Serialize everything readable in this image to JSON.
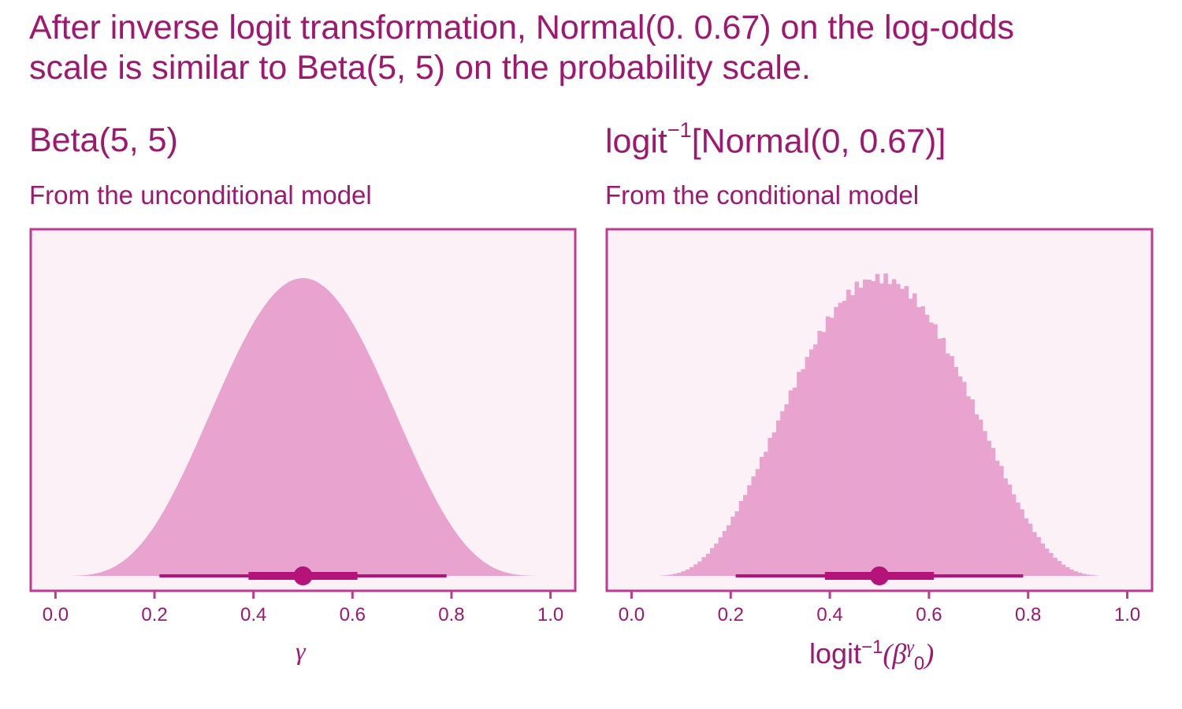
{
  "figure_title": {
    "line1": "After inverse logit transformation, Normal(0. 0.67) on the log-odds",
    "line2": "scale is similar to Beta(5, 5) on the probability scale."
  },
  "colors": {
    "text": "#a0176f",
    "panel_border": "#c03a92",
    "panel_bg": "#fcf1f7",
    "fill": "#e8a3cf",
    "interval": "#b5137a"
  },
  "chart_data": [
    {
      "type": "area",
      "panel_title": "Beta(5, 5)",
      "panel_subtitle": "From the unconditional model",
      "distribution": "Beta(5, 5)",
      "xlabel": "γ",
      "xlim": [
        -0.05,
        1.05
      ],
      "xticks": [
        0.0,
        0.2,
        0.4,
        0.6,
        0.8,
        1.0
      ],
      "xtick_labels": [
        "0.0",
        "0.2",
        "0.4",
        "0.6",
        "0.8",
        "1.0"
      ],
      "interval": {
        "median": 0.5,
        "inner": [
          0.39,
          0.61
        ],
        "outer": [
          0.21,
          0.79
        ]
      }
    },
    {
      "type": "histogram",
      "panel_title_main": "logit",
      "panel_title_sup": "−1",
      "panel_title_rest": "[Normal(0, 0.67)]",
      "panel_subtitle": "From the conditional model",
      "distribution": "inverse logit of Normal(0, 0.67)",
      "xlabel": {
        "main": "logit",
        "sup": "−1",
        "open": "(",
        "beta": "β",
        "beta_sup": "γ",
        "beta_sub": "0",
        "close": ")"
      },
      "xlim": [
        -0.05,
        1.05
      ],
      "xticks": [
        0.0,
        0.2,
        0.4,
        0.6,
        0.8,
        1.0
      ],
      "xtick_labels": [
        "0.0",
        "0.2",
        "0.4",
        "0.6",
        "0.8",
        "1.0"
      ],
      "interval": {
        "median": 0.5,
        "inner": [
          0.39,
          0.61
        ],
        "outer": [
          0.21,
          0.79
        ]
      }
    }
  ]
}
